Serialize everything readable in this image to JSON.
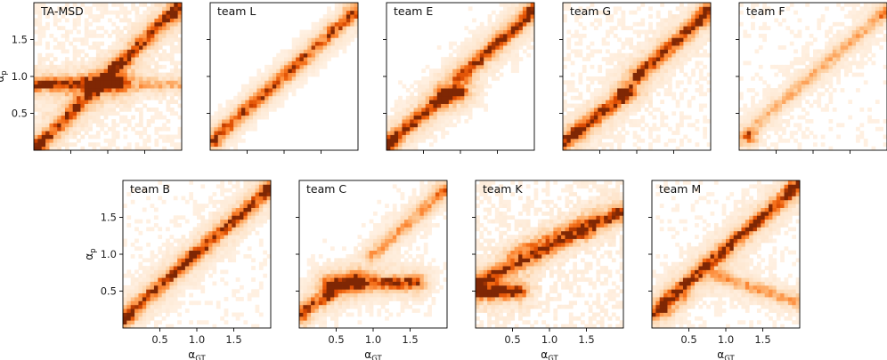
{
  "chart_data": {
    "type": "heatmap",
    "colormap": "Oranges",
    "xlabel": "α",
    "xlabel_sub": "GT",
    "ylabel": "α",
    "ylabel_sub": "p",
    "xlim": [
      0,
      2
    ],
    "ylim": [
      0,
      2
    ],
    "xticks": [
      0.5,
      1.0,
      1.5
    ],
    "xtick_labels": [
      "0.5",
      "1.0",
      "1.5"
    ],
    "yticks": [
      0.5,
      1.0,
      1.5
    ],
    "ytick_labels": [
      "0.5",
      "1.0",
      "1.5"
    ],
    "grid": false,
    "panels": [
      {
        "title": "TA-MSD",
        "row": 0,
        "col": 0,
        "segments": [
          [
            0.03,
            0.03,
            2.0,
            2.0,
            0.85
          ],
          [
            0.0,
            0.9,
            1.15,
            0.9,
            0.95
          ],
          [
            1.0,
            0.9,
            2.0,
            0.9,
            0.35
          ]
        ],
        "hotspots": [
          [
            0.85,
            0.92,
            1.0
          ],
          [
            1.1,
            1.1,
            0.6
          ],
          [
            1.9,
            1.85,
            0.9
          ],
          [
            0.05,
            0.05,
            0.9
          ]
        ],
        "background": 0.18
      },
      {
        "title": "team L",
        "row": 0,
        "col": 1,
        "segments": [
          [
            0.0,
            0.12,
            2.0,
            1.9,
            0.6
          ]
        ],
        "hotspots": [
          [
            0.05,
            0.12,
            0.95
          ],
          [
            0.25,
            0.3,
            0.5
          ],
          [
            0.45,
            0.5,
            0.5
          ],
          [
            0.65,
            0.68,
            0.5
          ],
          [
            0.85,
            0.88,
            0.5
          ],
          [
            1.05,
            1.05,
            0.5
          ],
          [
            1.25,
            1.25,
            0.5
          ],
          [
            1.45,
            1.45,
            0.5
          ],
          [
            1.65,
            1.65,
            0.5
          ],
          [
            1.9,
            1.88,
            0.8
          ]
        ],
        "background": 0.03
      },
      {
        "title": "team E",
        "row": 0,
        "col": 2,
        "segments": [
          [
            0.02,
            0.1,
            0.8,
            0.75,
            0.9
          ],
          [
            0.8,
            0.75,
            1.0,
            0.8,
            0.9
          ],
          [
            1.0,
            1.0,
            2.0,
            1.9,
            0.9
          ]
        ],
        "hotspots": [
          [
            0.05,
            0.1,
            0.9
          ],
          [
            0.8,
            0.78,
            0.7
          ],
          [
            1.95,
            1.88,
            0.9
          ]
        ],
        "background": 0.1
      },
      {
        "title": "team G",
        "row": 0,
        "col": 3,
        "segments": [
          [
            0.0,
            0.1,
            0.9,
            0.8,
            0.95
          ],
          [
            1.0,
            1.0,
            2.0,
            1.9,
            0.9
          ]
        ],
        "hotspots": [
          [
            0.2,
            0.25,
            0.9
          ],
          [
            0.8,
            0.78,
            0.8
          ],
          [
            1.9,
            1.85,
            0.9
          ]
        ],
        "background": 0.15
      },
      {
        "title": "team F",
        "row": 0,
        "col": 4,
        "segments": [
          [
            0.0,
            0.15,
            2.0,
            1.9,
            0.35
          ]
        ],
        "hotspots": [
          [
            0.15,
            0.18,
            1.0
          ],
          [
            1.9,
            1.85,
            0.5
          ]
        ],
        "background": 0.12
      },
      {
        "title": "team B",
        "row": 1,
        "col": 0,
        "segments": [
          [
            0.02,
            0.15,
            2.0,
            1.9,
            0.85
          ]
        ],
        "hotspots": [
          [
            0.05,
            0.15,
            0.9
          ],
          [
            0.9,
            0.95,
            0.6
          ],
          [
            1.95,
            1.88,
            0.8
          ]
        ],
        "background": 0.12
      },
      {
        "title": "team C",
        "row": 1,
        "col": 1,
        "segments": [
          [
            0.0,
            0.2,
            0.7,
            0.65,
            0.75
          ],
          [
            0.4,
            0.6,
            1.6,
            0.62,
            0.9
          ],
          [
            1.0,
            1.0,
            2.0,
            1.9,
            0.45
          ]
        ],
        "hotspots": [
          [
            0.8,
            0.68,
            1.0
          ],
          [
            0.05,
            0.15,
            0.7
          ],
          [
            1.9,
            1.85,
            0.6
          ]
        ],
        "background": 0.1
      },
      {
        "title": "team K",
        "row": 1,
        "col": 2,
        "segments": [
          [
            0.0,
            0.5,
            0.6,
            0.5,
            1.0
          ],
          [
            0.0,
            0.6,
            2.0,
            1.6,
            0.8
          ],
          [
            0.5,
            1.0,
            1.6,
            1.5,
            0.35
          ]
        ],
        "hotspots": [
          [
            0.3,
            0.52,
            1.0
          ],
          [
            1.5,
            1.3,
            0.6
          ],
          [
            1.9,
            1.5,
            0.6
          ]
        ],
        "background": 0.2
      },
      {
        "title": "team M",
        "row": 1,
        "col": 3,
        "segments": [
          [
            0.0,
            0.2,
            2.0,
            1.95,
            0.9
          ],
          [
            0.9,
            0.7,
            2.0,
            0.35,
            0.45
          ]
        ],
        "hotspots": [
          [
            0.2,
            0.25,
            1.0
          ],
          [
            0.4,
            0.4,
            0.7
          ],
          [
            1.9,
            1.9,
            0.8
          ]
        ],
        "background": 0.12
      }
    ]
  }
}
